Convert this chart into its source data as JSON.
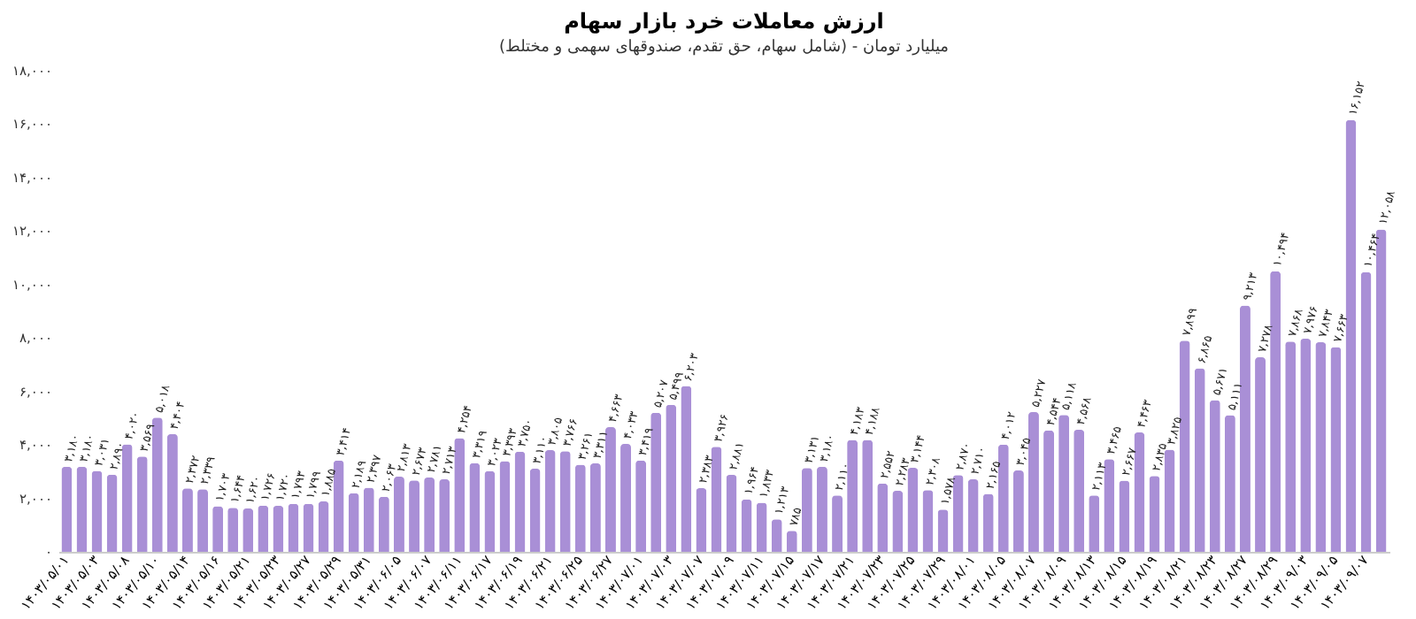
{
  "chart_data": {
    "type": "bar",
    "title": "ارزش معاملات خرد بازار سهام",
    "subtitle": "(شامل سهام، حق تقدم، صندوقهای سهمی و مختلط) - میلیارد تومان",
    "categories": [
      "۱۴۰۳/۰۵/۰۱",
      null,
      "۱۴۰۳/۰۵/۰۳",
      null,
      "۱۴۰۳/۰۵/۰۸",
      null,
      "۱۴۰۳/۰۵/۱۰",
      null,
      "۱۴۰۳/۰۵/۱۴",
      null,
      "۱۴۰۳/۰۵/۱۶",
      null,
      "۱۴۰۳/۰۵/۲۱",
      null,
      "۱۴۰۳/۰۵/۲۳",
      null,
      "۱۴۰۳/۰۵/۲۷",
      null,
      "۱۴۰۳/۰۵/۲۹",
      null,
      "۱۴۰۳/۰۵/۳۱",
      null,
      "۱۴۰۳/۰۶/۰۵",
      null,
      "۱۴۰۳/۰۶/۰۷",
      null,
      "۱۴۰۳/۰۶/۱۱",
      null,
      "۱۴۰۳/۰۶/۱۷",
      null,
      "۱۴۰۳/۰۶/۱۹",
      null,
      "۱۴۰۳/۰۶/۲۱",
      null,
      "۱۴۰۳/۰۶/۲۵",
      null,
      "۱۴۰۳/۰۶/۲۷",
      null,
      "۱۴۰۳/۰۷/۰۱",
      null,
      "۱۴۰۳/۰۷/۰۳",
      null,
      "۱۴۰۳/۰۷/۰۷",
      null,
      "۱۴۰۳/۰۷/۰۹",
      null,
      "۱۴۰۳/۰۷/۱۱",
      null,
      "۱۴۰۳/۰۷/۱۵",
      null,
      "۱۴۰۳/۰۷/۱۷",
      null,
      "۱۴۰۳/۰۷/۲۱",
      null,
      "۱۴۰۳/۰۷/۲۳",
      null,
      "۱۴۰۳/۰۷/۲۵",
      null,
      "۱۴۰۳/۰۷/۲۹",
      null,
      "۱۴۰۳/۰۸/۰۱",
      null,
      "۱۴۰۳/۰۸/۰۵",
      null,
      "۱۴۰۳/۰۸/۰۷",
      null,
      "۱۴۰۳/۰۸/۰۹",
      null,
      "۱۴۰۳/۰۸/۱۳",
      null,
      "۱۴۰۳/۰۸/۱۵",
      null,
      "۱۴۰۳/۰۸/۱۹",
      null,
      "۱۴۰۳/۰۸/۲۱",
      null,
      "۱۴۰۳/۰۸/۲۳",
      null,
      "۱۴۰۳/۰۸/۲۷",
      null,
      "۱۴۰۳/۰۸/۲۹",
      null,
      "۱۴۰۳/۰۹/۰۳",
      null,
      "۱۴۰۳/۰۹/۰۵",
      null,
      "۱۴۰۳/۰۹/۰۷",
      null
    ],
    "values": [
      3180,
      3180,
      3031,
      2890,
      4020,
      3569,
      5018,
      4404,
      2372,
      2339,
      1703,
      1644,
      1620,
      1726,
      1720,
      1793,
      1799,
      1885,
      3414,
      2189,
      2397,
      2063,
      2813,
      2673,
      2781,
      2713,
      4254,
      3319,
      3023,
      3393,
      3750,
      3110,
      3805,
      3766,
      3261,
      3311,
      4663,
      4033,
      3419,
      5207,
      5499,
      6203,
      2383,
      3926,
      2881,
      1964,
      1833,
      1213,
      785,
      3131,
      3180,
      2110,
      4183,
      4188,
      2552,
      2283,
      3144,
      2308,
      1578,
      2870,
      2710,
      2165,
      4012,
      3045,
      5227,
      4544,
      5118,
      4568,
      2113,
      3465,
      2667,
      4463,
      2835,
      3825,
      7899,
      6865,
      5671,
      5111,
      9213,
      7278,
      10494,
      7868,
      7976,
      7843,
      7663,
      16152,
      10464,
      12058
    ],
    "value_labels": [
      "۳,۱۸۰",
      "۳,۱۸۰",
      "۳,۰۳۱",
      "۲,۸۹۰",
      "۴,۰۲۰",
      "۳,۵۶۹",
      "۵,۰۱۸",
      "۴,۴۰۴",
      "۲,۳۷۲",
      "۲,۳۳۹",
      "۱,۷۰۳",
      "۱,۶۴۴",
      "۱,۶۲۰",
      "۱,۷۲۶",
      "۱,۷۲۰",
      "۱,۷۹۳",
      "۱,۷۹۹",
      "۱,۸۸۵",
      "۳,۴۱۴",
      "۲,۱۸۹",
      "۲,۳۹۷",
      "۲,۰۶۳",
      "۲,۸۱۳",
      "۲,۶۷۳",
      "۲,۷۸۱",
      "۲,۷۱۳",
      "۴,۲۵۴",
      "۳,۳۱۹",
      "۳,۰۲۳",
      "۳,۳۹۳",
      "۳,۷۵۰",
      "۳,۱۱۰",
      "۳,۸۰۵",
      "۳,۷۶۶",
      "۳,۲۶۱",
      "۳,۳۱۱",
      "۴,۶۶۳",
      "۴,۰۳۳",
      "۳,۴۱۹",
      "۵,۲۰۷",
      "۵,۴۹۹",
      "۶,۲۰۳",
      "۲,۳۸۳",
      "۳,۹۲۶",
      "۲,۸۸۱",
      "۱,۹۶۴",
      "۱,۸۳۳",
      "۱,۲۱۳",
      "۷۸۵",
      "۳,۱۳۱",
      "۳,۱۸۰",
      "۲,۱۱۰",
      "۴,۱۸۳",
      "۴,۱۸۸",
      "۲,۵۵۲",
      "۲,۲۸۳",
      "۳,۱۴۴",
      "۲,۳۰۸",
      "۱,۵۷۸",
      "۲,۸۷۰",
      "۲,۷۱۰",
      "۲,۱۶۵",
      "۴,۰۱۲",
      "۳,۰۴۵",
      "۵,۲۲۷",
      "۴,۵۴۴",
      "۵,۱۱۸",
      "۴,۵۶۸",
      "۲,۱۱۳",
      "۳,۴۶۵",
      "۲,۶۶۷",
      "۴,۴۶۳",
      "۲,۸۳۵",
      "۳,۸۲۵",
      "۷,۸۹۹",
      "۶,۸۶۵",
      "۵,۶۷۱",
      "۵,۱۱۱",
      "۹,۲۱۳",
      "۷,۲۷۸",
      "۱۰,۴۹۴",
      "۷,۸۶۸",
      "۷,۹۷۶",
      "۷,۸۴۳",
      "۷,۶۶۳",
      "۱۶,۱۵۲",
      "۱۰,۴۶۴",
      "۱۲,۰۵۸"
    ],
    "color": "#a98fd6",
    "ylim": [
      0,
      18000
    ],
    "yticks": [
      {
        "value": 0,
        "label": "۰"
      },
      {
        "value": 2000,
        "label": "۲,۰۰۰"
      },
      {
        "value": 4000,
        "label": "۴,۰۰۰"
      },
      {
        "value": 6000,
        "label": "۶,۰۰۰"
      },
      {
        "value": 8000,
        "label": "۸,۰۰۰"
      },
      {
        "value": 10000,
        "label": "۱۰,۰۰۰"
      },
      {
        "value": 12000,
        "label": "۱۲,۰۰۰"
      },
      {
        "value": 14000,
        "label": "۱۴,۰۰۰"
      },
      {
        "value": 16000,
        "label": "۱۶,۰۰۰"
      },
      {
        "value": 18000,
        "label": "۱۸,۰۰۰"
      }
    ],
    "grid": false
  }
}
